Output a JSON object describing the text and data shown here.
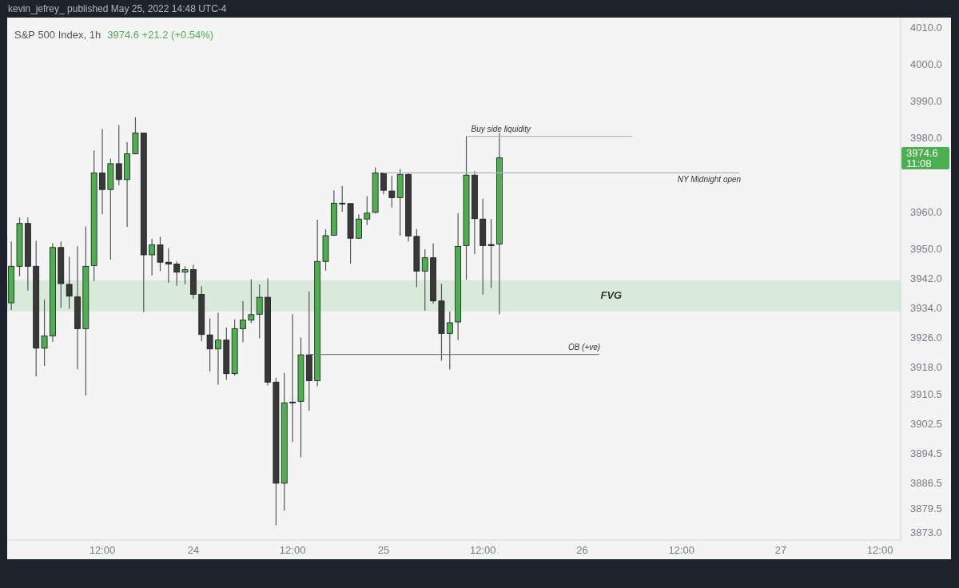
{
  "chart_data": {
    "type": "candlestick",
    "title": "S&P 500 Index, 1h",
    "subtitle": "3974.6 +21.2 (+0.54%)",
    "annotations": [
      "kevin_jefrey_ published May 25, 2022 14:48 UTC-4",
      "3974.6 11:08"
    ],
    "categories": [
      null,
      null,
      null,
      null,
      null,
      null,
      null,
      null,
      null,
      null,
      null,
      "12:00",
      null,
      null,
      null,
      null,
      null,
      null,
      null,
      null,
      null,
      null,
      "24",
      null,
      null,
      null,
      null,
      null,
      null,
      null,
      null,
      null,
      null,
      null,
      "12:00",
      null,
      null,
      null,
      null,
      null,
      null,
      null,
      null,
      null,
      null,
      "25",
      null,
      null,
      null,
      null,
      null,
      null,
      null,
      null,
      null,
      null,
      null,
      "12:00",
      null,
      null,
      null,
      null,
      null,
      null,
      null,
      null,
      null,
      null,
      null,
      "26",
      null,
      null,
      null,
      null,
      null,
      null,
      null,
      null,
      null,
      null,
      null,
      "12:00",
      null,
      null,
      null,
      null,
      null,
      null,
      null,
      null,
      null,
      null,
      null,
      "27",
      null,
      null,
      null,
      null,
      null,
      null,
      null,
      null,
      null,
      null,
      null,
      "12:00",
      null,
      null
    ],
    "ohlc": [
      [
        3935.3,
        3951.9,
        3933.3,
        3945.2
      ],
      [
        3945.2,
        3958.4,
        3942.5,
        3956.8
      ],
      [
        3956.8,
        3958.4,
        3938.6,
        3945.2
      ],
      [
        3945.2,
        3952.1,
        3915.4,
        3923.0
      ],
      [
        3923.0,
        3936.2,
        3918.2,
        3926.3
      ],
      [
        3926.3,
        3951.5,
        3924.7,
        3950.3
      ],
      [
        3950.3,
        3951.9,
        3934.0,
        3940.5
      ],
      [
        3940.3,
        3947.8,
        3933.7,
        3937.1
      ],
      [
        3936.9,
        3950.6,
        3917.3,
        3928.3
      ],
      [
        3928.3,
        3956.0,
        3910.2,
        3945.2
      ],
      [
        3945.4,
        3976.6,
        3941.2,
        3970.5
      ],
      [
        3970.5,
        3982.4,
        3959.3,
        3966.0
      ],
      [
        3966.0,
        3974.4,
        3947.0,
        3973.0
      ],
      [
        3973.0,
        3983.5,
        3967.2,
        3968.7
      ],
      [
        3968.7,
        3978.8,
        3955.9,
        3975.7
      ],
      [
        3975.7,
        3985.6,
        3975.5,
        3981.3
      ],
      [
        3981.3,
        3981.3,
        3932.8,
        3948.3
      ],
      [
        3948.3,
        3952.6,
        3942.7,
        3951.0
      ],
      [
        3951.0,
        3953.2,
        3943.9,
        3946.3
      ],
      [
        3946.3,
        3950.1,
        3940.7,
        3945.8
      ],
      [
        3945.8,
        3946.5,
        3939.9,
        3943.6
      ],
      [
        3943.6,
        3945.2,
        3940.3,
        3944.3
      ],
      [
        3944.3,
        3945.6,
        3936.4,
        3937.6
      ],
      [
        3937.6,
        3939.8,
        3924.9,
        3926.7
      ],
      [
        3926.6,
        3931.1,
        3916.7,
        3922.8
      ],
      [
        3922.8,
        3932.6,
        3913.1,
        3925.2
      ],
      [
        3925.2,
        3928.6,
        3914.4,
        3916.1
      ],
      [
        3916.1,
        3930.8,
        3915.6,
        3928.3
      ],
      [
        3928.3,
        3935.8,
        3924.6,
        3930.6
      ],
      [
        3930.6,
        3941.7,
        3929.8,
        3932.1
      ],
      [
        3932.2,
        3940.3,
        3925.7,
        3936.8
      ],
      [
        3936.8,
        3941.9,
        3912.9,
        3913.8
      ],
      [
        3913.8,
        3915.0,
        3875.0,
        3886.4
      ],
      [
        3886.4,
        3916.3,
        3879.0,
        3908.2
      ],
      [
        3908.4,
        3932.2,
        3897.6,
        3908.3
      ],
      [
        3908.6,
        3925.9,
        3893.4,
        3921.2
      ],
      [
        3921.2,
        3938.4,
        3906.0,
        3914.2
      ],
      [
        3914.2,
        3957.8,
        3912.7,
        3946.5
      ],
      [
        3946.5,
        3955.2,
        3944.0,
        3953.5
      ],
      [
        3953.6,
        3965.8,
        3953.5,
        3962.3
      ],
      [
        3962.3,
        3966.9,
        3960.0,
        3962.2
      ],
      [
        3962.2,
        3962.2,
        3945.9,
        3952.8
      ],
      [
        3952.8,
        3959.3,
        3952.6,
        3958.0
      ],
      [
        3958.0,
        3964.2,
        3956.4,
        3959.6
      ],
      [
        3959.8,
        3972.0,
        3959.5,
        3970.5
      ],
      [
        3970.5,
        3970.5,
        3964.7,
        3965.8
      ],
      [
        3965.6,
        3969.7,
        3961.1,
        3963.8
      ],
      [
        3963.8,
        3971.5,
        3953.5,
        3970.1
      ],
      [
        3970.1,
        3970.5,
        3951.9,
        3953.4
      ],
      [
        3953.3,
        3955.2,
        3939.6,
        3943.9
      ],
      [
        3943.9,
        3949.8,
        3933.2,
        3947.5
      ],
      [
        3947.5,
        3951.4,
        3935.1,
        3935.8
      ],
      [
        3935.8,
        3940.5,
        3919.6,
        3927.0
      ],
      [
        3927.0,
        3932.9,
        3917.2,
        3929.9
      ],
      [
        3930.1,
        3959.6,
        3925.2,
        3950.6
      ],
      [
        3950.8,
        3980.4,
        3941.5,
        3969.9
      ],
      [
        3969.9,
        3971.0,
        3948.5,
        3958.1
      ],
      [
        3958.0,
        3963.5,
        3937.5,
        3950.8
      ],
      [
        3951.1,
        3958.0,
        3939.3,
        3950.8
      ],
      [
        3951.2,
        3981.3,
        3932.2,
        3974.6
      ],
      null,
      null,
      null,
      null,
      null,
      null,
      null,
      null,
      null,
      null,
      null,
      null,
      null,
      null,
      null,
      null,
      null,
      null,
      null,
      null,
      null,
      null,
      null,
      null,
      null,
      null,
      null,
      null,
      null,
      null,
      null,
      null,
      null,
      null,
      null,
      null,
      null,
      null,
      null,
      null,
      null,
      null,
      null,
      null,
      null,
      null,
      null,
      null
    ],
    "colors": [
      "#4caf50",
      "#4caf50",
      "#383838",
      "#383838",
      "#4caf50",
      "#4caf50",
      "#383838",
      "#383838",
      "#383838",
      "#4caf50",
      "#4caf50",
      "#383838",
      "#4caf50",
      "#383838",
      "#4caf50",
      "#4caf50",
      "#383838",
      "#4caf50",
      "#383838",
      "#383838",
      "#383838",
      "#4caf50",
      "#383838",
      "#383838",
      "#383838",
      "#4caf50",
      "#383838",
      "#4caf50",
      "#4caf50",
      "#4caf50",
      "#4caf50",
      "#383838",
      "#383838",
      "#4caf50",
      "#383838",
      "#4caf50",
      "#383838",
      "#4caf50",
      "#4caf50",
      "#4caf50",
      "#383838",
      "#383838",
      "#4caf50",
      "#4caf50",
      "#4caf50",
      "#383838",
      "#383838",
      "#4caf50",
      "#383838",
      "#383838",
      "#4caf50",
      "#383838",
      "#383838",
      "#4caf50",
      "#4caf50",
      "#4caf50",
      "#383838",
      "#383838",
      "#383838",
      "#4caf50",
      null,
      null,
      null,
      null,
      null,
      null,
      null,
      null,
      null,
      null,
      null,
      null,
      null,
      null,
      null,
      null,
      null,
      null,
      null,
      null,
      null,
      null,
      null,
      null,
      null,
      null,
      null,
      null,
      null,
      null,
      null,
      null,
      null,
      null,
      null,
      null,
      null,
      null,
      null,
      null,
      null,
      null,
      null,
      null,
      null,
      null,
      null,
      null
    ],
    "series": [
      {
        "type": "line",
        "name": "Buy side liquidity",
        "color": "#b2b5be",
        "values": [
          null,
          null,
          null,
          null,
          null,
          null,
          null,
          null,
          null,
          null,
          null,
          null,
          null,
          null,
          null,
          null,
          null,
          null,
          null,
          null,
          null,
          null,
          null,
          null,
          null,
          null,
          null,
          null,
          null,
          null,
          null,
          null,
          null,
          null,
          null,
          null,
          null,
          null,
          null,
          null,
          null,
          null,
          null,
          null,
          null,
          null,
          null,
          null,
          null,
          null,
          null,
          null,
          null,
          null,
          null,
          3980.4,
          3980.4,
          3980.4,
          3980.4,
          3980.4,
          3980.4,
          3980.4,
          3980.4,
          3980.4,
          3980.4,
          3980.4,
          3980.4,
          3980.4,
          3980.4,
          3980.4,
          3980.4,
          3980.4,
          3980.4,
          3980.4,
          3980.4,
          3980.4,
          null,
          null,
          null,
          null,
          null,
          null,
          null,
          null,
          null,
          null,
          null,
          null,
          null,
          null,
          null,
          null,
          null,
          null,
          null,
          null,
          null,
          null,
          null,
          null,
          null,
          null,
          null,
          null,
          null,
          null,
          null,
          null
        ]
      },
      {
        "type": "line",
        "name": "NY Midnight open",
        "color": "#b2b5be",
        "values": [
          null,
          null,
          null,
          null,
          null,
          null,
          null,
          null,
          null,
          null,
          null,
          null,
          null,
          null,
          null,
          null,
          null,
          null,
          null,
          null,
          null,
          null,
          null,
          null,
          null,
          null,
          null,
          null,
          null,
          null,
          null,
          null,
          null,
          null,
          null,
          null,
          null,
          null,
          null,
          null,
          null,
          null,
          null,
          null,
          null,
          3970.5,
          3970.5,
          3970.5,
          3970.5,
          3970.5,
          3970.5,
          3970.5,
          3970.5,
          3970.5,
          3970.5,
          3970.5,
          3970.5,
          3970.5,
          3970.5,
          3970.5,
          3970.5,
          3970.5,
          3970.5,
          3970.5,
          3970.5,
          3970.5,
          3970.5,
          3970.5,
          3970.5,
          3970.5,
          3970.5,
          3970.5,
          3970.5,
          3970.5,
          3970.5,
          3970.5,
          3970.5,
          3970.5,
          3970.5,
          3970.5,
          3970.5,
          3970.5,
          3970.5,
          3970.5,
          3970.5,
          3970.5,
          3970.5,
          3970.5,
          3970.5,
          null,
          null,
          null,
          null,
          null,
          null,
          null,
          null,
          null,
          null,
          null,
          null,
          null,
          null,
          null,
          null,
          null,
          null,
          null
        ]
      },
      {
        "type": "line",
        "name": "OB (+ve)",
        "color": "#787b86",
        "values": [
          null,
          null,
          null,
          null,
          null,
          null,
          null,
          null,
          null,
          null,
          null,
          null,
          null,
          null,
          null,
          null,
          null,
          null,
          null,
          null,
          null,
          null,
          null,
          null,
          null,
          null,
          null,
          null,
          null,
          null,
          null,
          null,
          null,
          null,
          null,
          null,
          3921.3,
          3921.3,
          3921.3,
          3921.3,
          3921.3,
          3921.3,
          3921.3,
          3921.3,
          3921.3,
          3921.3,
          3921.3,
          3921.3,
          3921.3,
          3921.3,
          3921.3,
          3921.3,
          3921.3,
          3921.3,
          3921.3,
          3921.3,
          3921.3,
          3921.3,
          3921.3,
          3921.3,
          3921.3,
          3921.3,
          3921.3,
          3921.3,
          3921.3,
          3921.3,
          3921.3,
          3921.3,
          3921.3,
          3921.3,
          3921.3,
          3921.3,
          null,
          null,
          null,
          null,
          null,
          null,
          null,
          null,
          null,
          null,
          null,
          null,
          null,
          null,
          null,
          null,
          null,
          null,
          null,
          null,
          null,
          null,
          null,
          null,
          null,
          null,
          null,
          null,
          null,
          null,
          null,
          null,
          null,
          null,
          null,
          null
        ]
      }
    ],
    "bands": [
      {
        "axis": "y",
        "from": 3933.0,
        "to": 3941.4,
        "label": "FVG",
        "color": "#d9eadb"
      }
    ],
    "ylim": [
      3871.0,
      4012.6
    ],
    "yticks": [
      {
        "value": 4010,
        "label": "4010.0"
      },
      {
        "value": 4000,
        "label": "4000.0"
      },
      {
        "value": 3990,
        "label": "3990.0"
      },
      {
        "value": 3980,
        "label": "3980.0"
      },
      {
        "value": 3960,
        "label": "3960.0"
      },
      {
        "value": 3950,
        "label": "3950.0"
      },
      {
        "value": 3942,
        "label": "3942.0"
      },
      {
        "value": 3934,
        "label": "3934.0"
      },
      {
        "value": 3926,
        "label": "3926.0"
      },
      {
        "value": 3918,
        "label": "3918.0"
      },
      3910.5,
      3902.5,
      3894.5,
      3886.5,
      3879.5,
      {
        "value": 3873,
        "label": "3873.0"
      }
    ]
  }
}
